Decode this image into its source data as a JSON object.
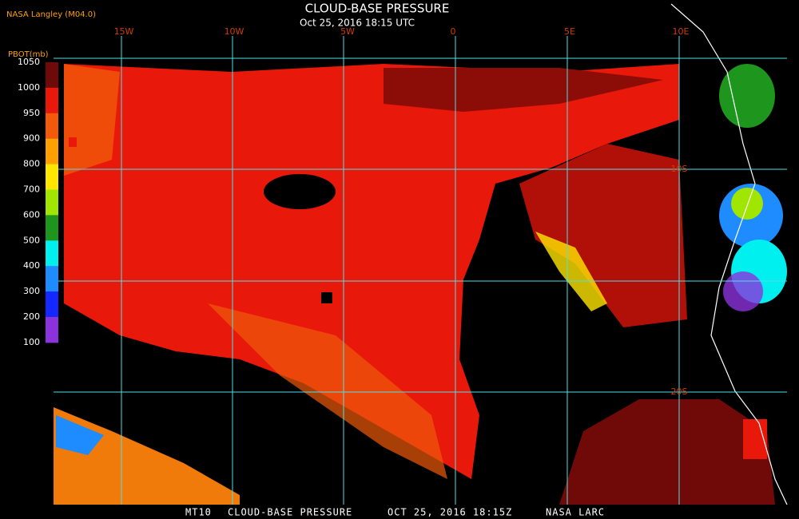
{
  "header": {
    "title": "CLOUD-BASE PRESSURE",
    "timestamp": "Oct 25, 2016 18:15 UTC",
    "source": "NASA Langley (M04.0)"
  },
  "legend": {
    "label": "PBOT(mb)",
    "ticks": [
      1050,
      1000,
      950,
      900,
      800,
      700,
      600,
      500,
      400,
      300,
      200,
      100
    ],
    "colors": [
      "#6e0a0a",
      "#e8180a",
      "#f05a0a",
      "#ffa000",
      "#ffe600",
      "#a0e600",
      "#1e961e",
      "#00f0f0",
      "#1e8cff",
      "#1428ff",
      "#8c32dc"
    ]
  },
  "map": {
    "longitude_labels": [
      "15W",
      "10W",
      "5W",
      "0",
      "5E",
      "10E"
    ],
    "latitude_labels": [
      "10S",
      "20S"
    ]
  },
  "footer": [
    "MT10",
    "CLOUD-BASE PRESSURE",
    "OCT 25, 2016 18:15Z",
    "NASA LARC"
  ]
}
